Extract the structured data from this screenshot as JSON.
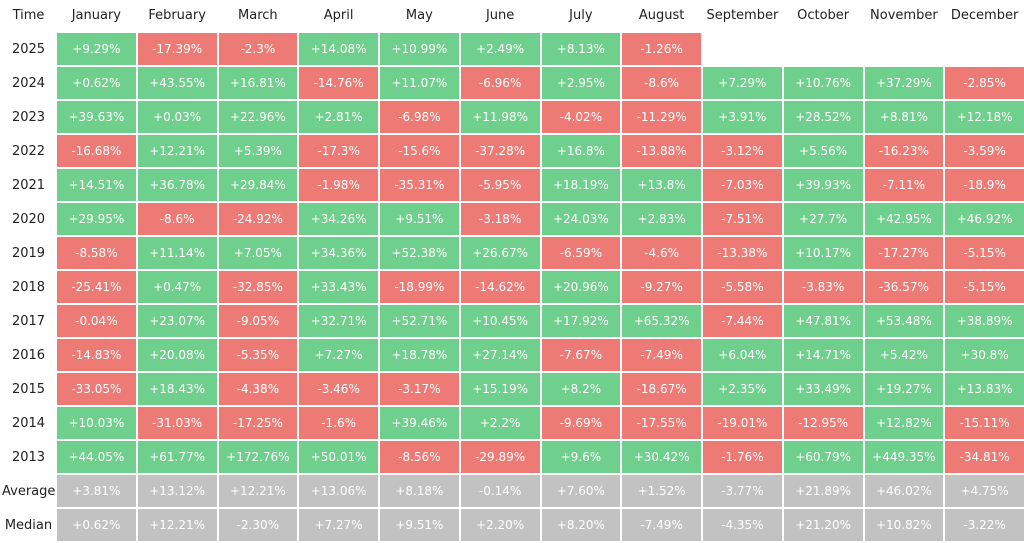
{
  "chart_data": {
    "type": "table",
    "header_label": "Time",
    "columns": [
      "January",
      "February",
      "March",
      "April",
      "May",
      "June",
      "July",
      "August",
      "September",
      "October",
      "November",
      "December"
    ],
    "rows": [
      {
        "label": "2025",
        "values": [
          "+9.29%",
          "-17.39%",
          "-2.3%",
          "+14.08%",
          "+10.99%",
          "+2.49%",
          "+8.13%",
          "-1.26%",
          null,
          null,
          null,
          null
        ]
      },
      {
        "label": "2024",
        "values": [
          "+0.62%",
          "+43.55%",
          "+16.81%",
          "-14.76%",
          "+11.07%",
          "-6.96%",
          "+2.95%",
          "-8.6%",
          "+7.29%",
          "+10.76%",
          "+37.29%",
          "-2.85%"
        ]
      },
      {
        "label": "2023",
        "values": [
          "+39.63%",
          "+0.03%",
          "+22.96%",
          "+2.81%",
          "-6.98%",
          "+11.98%",
          "-4.02%",
          "-11.29%",
          "+3.91%",
          "+28.52%",
          "+8.81%",
          "+12.18%"
        ]
      },
      {
        "label": "2022",
        "values": [
          "-16.68%",
          "+12.21%",
          "+5.39%",
          "-17.3%",
          "-15.6%",
          "-37.28%",
          "+16.8%",
          "-13.88%",
          "-3.12%",
          "+5.56%",
          "-16.23%",
          "-3.59%"
        ]
      },
      {
        "label": "2021",
        "values": [
          "+14.51%",
          "+36.78%",
          "+29.84%",
          "-1.98%",
          "-35.31%",
          "-5.95%",
          "+18.19%",
          "+13.8%",
          "-7.03%",
          "+39.93%",
          "-7.11%",
          "-18.9%"
        ]
      },
      {
        "label": "2020",
        "values": [
          "+29.95%",
          "-8.6%",
          "-24.92%",
          "+34.26%",
          "+9.51%",
          "-3.18%",
          "+24.03%",
          "+2.83%",
          "-7.51%",
          "+27.7%",
          "+42.95%",
          "+46.92%"
        ]
      },
      {
        "label": "2019",
        "values": [
          "-8.58%",
          "+11.14%",
          "+7.05%",
          "+34.36%",
          "+52.38%",
          "+26.67%",
          "-6.59%",
          "-4.6%",
          "-13.38%",
          "+10.17%",
          "-17.27%",
          "-5.15%"
        ]
      },
      {
        "label": "2018",
        "values": [
          "-25.41%",
          "+0.47%",
          "-32.85%",
          "+33.43%",
          "-18.99%",
          "-14.62%",
          "+20.96%",
          "-9.27%",
          "-5.58%",
          "-3.83%",
          "-36.57%",
          "-5.15%"
        ]
      },
      {
        "label": "2017",
        "values": [
          "-0.04%",
          "+23.07%",
          "-9.05%",
          "+32.71%",
          "+52.71%",
          "+10.45%",
          "+17.92%",
          "+65.32%",
          "-7.44%",
          "+47.81%",
          "+53.48%",
          "+38.89%"
        ]
      },
      {
        "label": "2016",
        "values": [
          "-14.83%",
          "+20.08%",
          "-5.35%",
          "+7.27%",
          "+18.78%",
          "+27.14%",
          "-7.67%",
          "-7.49%",
          "+6.04%",
          "+14.71%",
          "+5.42%",
          "+30.8%"
        ]
      },
      {
        "label": "2015",
        "values": [
          "-33.05%",
          "+18.43%",
          "-4.38%",
          "-3.46%",
          "-3.17%",
          "+15.19%",
          "+8.2%",
          "-18.67%",
          "+2.35%",
          "+33.49%",
          "+19.27%",
          "+13.83%"
        ]
      },
      {
        "label": "2014",
        "values": [
          "+10.03%",
          "-31.03%",
          "-17.25%",
          "-1.6%",
          "+39.46%",
          "+2.2%",
          "-9.69%",
          "-17.55%",
          "-19.01%",
          "-12.95%",
          "+12.82%",
          "-15.11%"
        ]
      },
      {
        "label": "2013",
        "values": [
          "+44.05%",
          "+61.77%",
          "+172.76%",
          "+50.01%",
          "-8.56%",
          "-29.89%",
          "+9.6%",
          "+30.42%",
          "-1.76%",
          "+60.79%",
          "+449.35%",
          "-34.81%"
        ]
      }
    ],
    "summary_rows": [
      {
        "label": "Average",
        "values": [
          "+3.81%",
          "+13.12%",
          "+12.21%",
          "+13.06%",
          "+8.18%",
          "-0.14%",
          "+7.60%",
          "+1.52%",
          "-3.77%",
          "+21.89%",
          "+46.02%",
          "+4.75%"
        ]
      },
      {
        "label": "Median",
        "values": [
          "+0.62%",
          "+12.21%",
          "-2.30%",
          "+7.27%",
          "+9.51%",
          "+2.20%",
          "+8.20%",
          "-7.49%",
          "-4.35%",
          "+21.20%",
          "+10.82%",
          "-3.22%"
        ]
      }
    ],
    "colors": {
      "positive": "#6fcf8c",
      "negative": "#ee7a76",
      "summary": "#c2c2c2"
    }
  }
}
